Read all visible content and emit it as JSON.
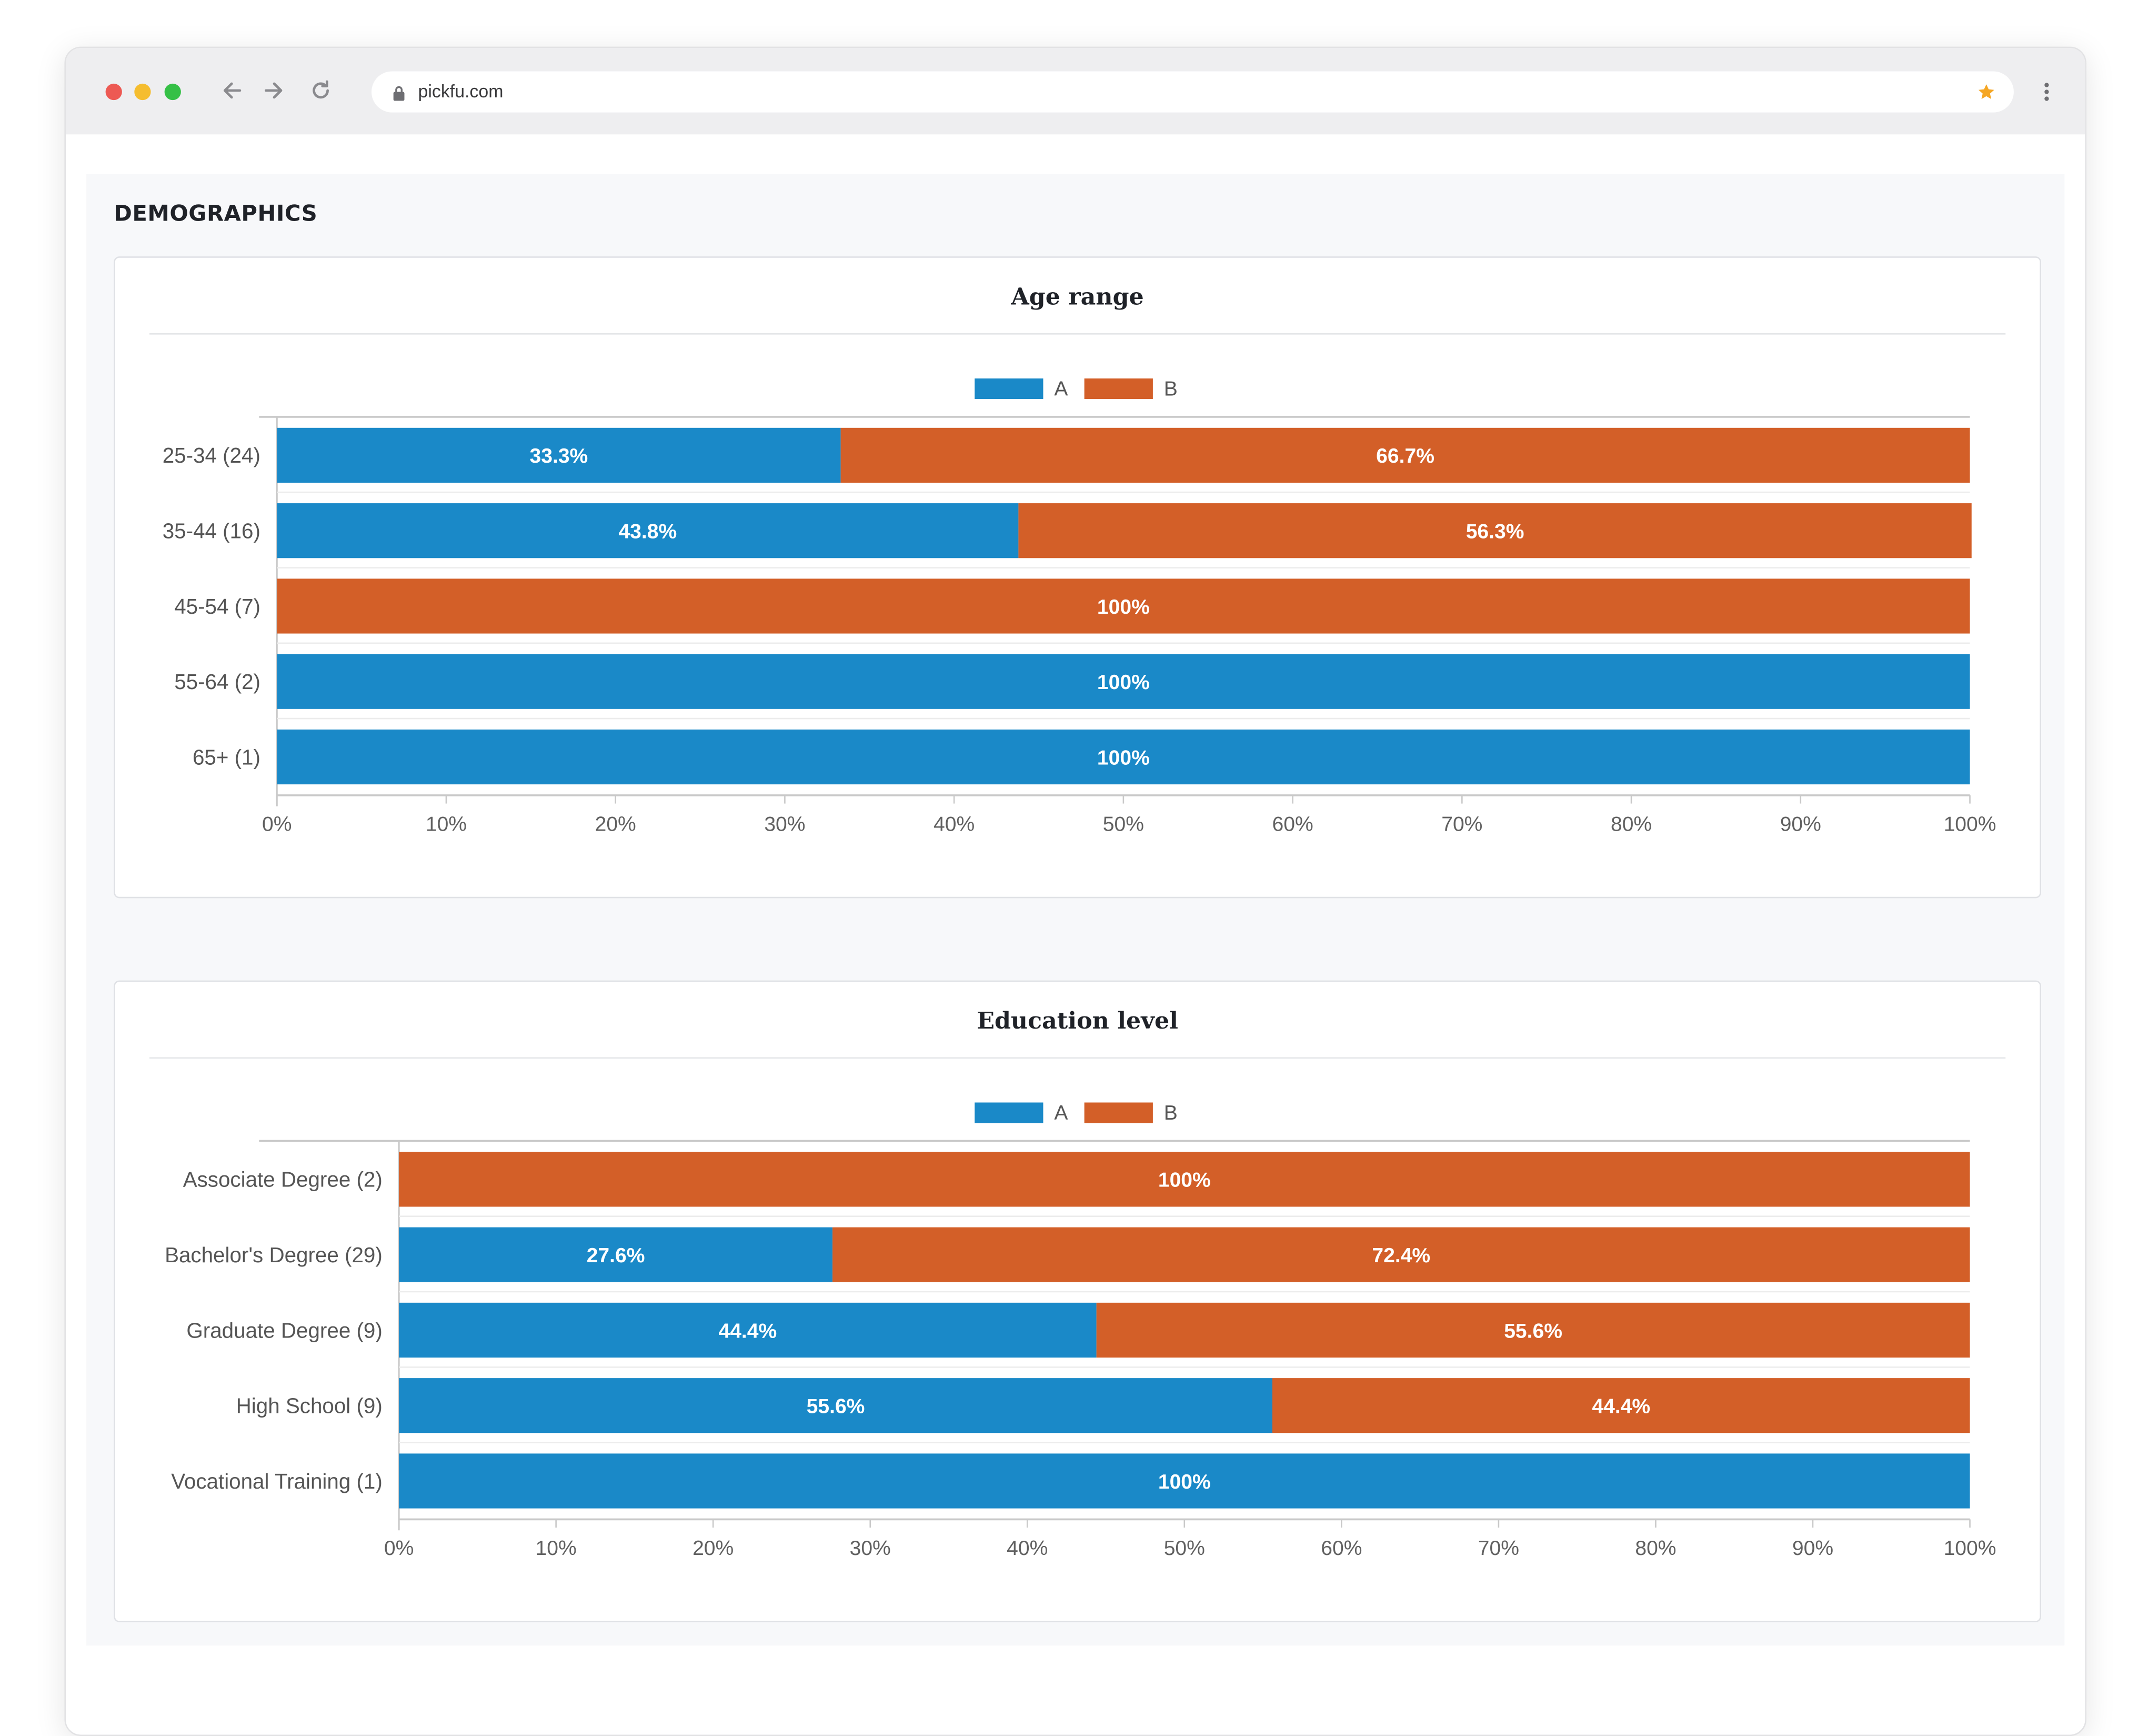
{
  "browser": {
    "url": "pickfu.com"
  },
  "page": {
    "section_title": "DEMOGRAPHICS"
  },
  "colors": {
    "series_a": "#1a89c8",
    "series_b": "#d35f28"
  },
  "chart_data": [
    {
      "type": "bar",
      "orientation": "horizontal",
      "stacked": "percent",
      "title": "Age range",
      "categories": [
        "25-34 (24)",
        "35-44 (16)",
        "45-54 (7)",
        "55-64 (2)",
        "65+ (1)"
      ],
      "series": [
        {
          "name": "A",
          "values": [
            33.3,
            43.8,
            0,
            100,
            100
          ],
          "labels": [
            "33.3%",
            "43.8%",
            "",
            "100%",
            "100%"
          ]
        },
        {
          "name": "B",
          "values": [
            66.7,
            56.3,
            100,
            0,
            0
          ],
          "labels": [
            "66.7%",
            "56.3%",
            "100%",
            "",
            ""
          ]
        }
      ],
      "x_ticks": [
        "0%",
        "10%",
        "20%",
        "30%",
        "40%",
        "50%",
        "60%",
        "70%",
        "80%",
        "90%",
        "100%"
      ],
      "xlim": [
        0,
        100
      ],
      "legend": "top-center"
    },
    {
      "type": "bar",
      "orientation": "horizontal",
      "stacked": "percent",
      "title": "Education level",
      "categories": [
        "Associate Degree (2)",
        "Bachelor's Degree (29)",
        "Graduate Degree (9)",
        "High School (9)",
        "Vocational Training (1)"
      ],
      "series": [
        {
          "name": "A",
          "values": [
            0,
            27.6,
            44.4,
            55.6,
            100
          ],
          "labels": [
            "",
            "27.6%",
            "44.4%",
            "55.6%",
            "100%"
          ]
        },
        {
          "name": "B",
          "values": [
            100,
            72.4,
            55.6,
            44.4,
            0
          ],
          "labels": [
            "100%",
            "72.4%",
            "55.6%",
            "44.4%",
            ""
          ]
        }
      ],
      "x_ticks": [
        "0%",
        "10%",
        "20%",
        "30%",
        "40%",
        "50%",
        "60%",
        "70%",
        "80%",
        "90%",
        "100%"
      ],
      "xlim": [
        0,
        100
      ],
      "legend": "top-center"
    }
  ]
}
